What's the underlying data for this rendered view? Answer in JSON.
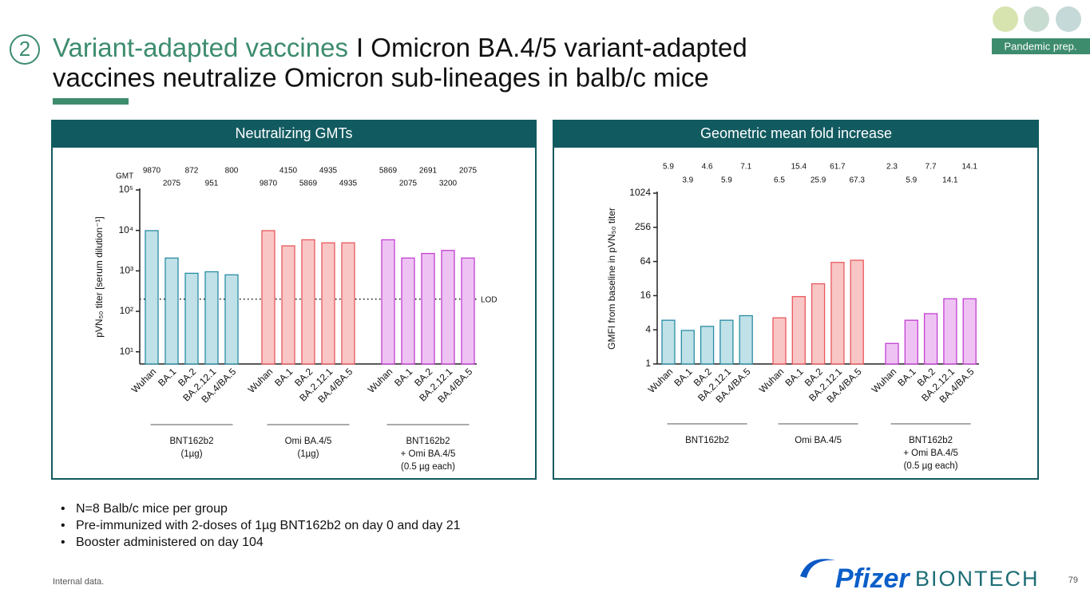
{
  "slide": {
    "number": "2",
    "title_accent": "Variant-adapted vaccines",
    "title_rest": "I Omicron BA.4/5 variant-adapted",
    "title_line2": "vaccines neutralize Omicron sub-lineages in balb/c mice",
    "badge": "Pandemic prep.",
    "bullets": [
      "N=8 Balb/c mice per group",
      "Pre-immunized with 2-doses of 1µg BNT162b2 on day 0 and day 21",
      "Booster administered on day 104"
    ],
    "footnote": "Internal data.",
    "page": "79",
    "logo_left": "Pfizer",
    "logo_right": "BIONTECH"
  },
  "chart_data": [
    {
      "type": "bar",
      "title": "Neutralizing GMTs",
      "value_heading": "GMT",
      "y_label": "pVN₅₀ titer [serum dilution⁻¹]",
      "log_scale": true,
      "ylim": [
        5,
        100000
      ],
      "yticks": [
        {
          "value": 10,
          "label": "10¹"
        },
        {
          "value": 100,
          "label": "10²"
        },
        {
          "value": 1000,
          "label": "10³"
        },
        {
          "value": 10000,
          "label": "10⁴"
        },
        {
          "value": 100000,
          "label": "10⁵"
        }
      ],
      "lod_value": 200,
      "lod_label": "LOD",
      "categories": [
        "Wuhan",
        "BA.1",
        "BA.2",
        "BA.2.12.1",
        "BA.4/BA.5"
      ],
      "series": [
        {
          "name": [
            "BNT162b2",
            "(1µg)"
          ],
          "color": "#2a8ca6",
          "fill": "#bfe1e7",
          "values": [
            9870,
            2075,
            872,
            951,
            800
          ]
        },
        {
          "name": [
            "Omi BA.4/5",
            "(1µg)"
          ],
          "color": "#e8585c",
          "fill": "#f9c6c6",
          "values": [
            9870,
            4150,
            5869,
            4935,
            4935
          ]
        },
        {
          "name": [
            "BNT162b2",
            "+ Omi BA.4/5",
            "(0.5 µg each)"
          ],
          "color": "#c23fd2",
          "fill": "#eec3f3",
          "values": [
            5869,
            2075,
            2691,
            3200,
            2075
          ]
        }
      ]
    },
    {
      "type": "bar",
      "title": "Geometric mean fold increase",
      "y_label": "GMFI from baseline in pVN₅₀ titer",
      "log_scale": true,
      "ylim": [
        1,
        1024
      ],
      "yticks": [
        1,
        4,
        16,
        64,
        256,
        1024
      ],
      "categories": [
        "Wuhan",
        "BA.1",
        "BA.2",
        "BA.2.12.1",
        "BA.4/BA.5"
      ],
      "series": [
        {
          "name": [
            "BNT162b2"
          ],
          "color": "#2a8ca6",
          "fill": "#bfe1e7",
          "values": [
            5.9,
            3.9,
            4.6,
            5.9,
            7.1
          ]
        },
        {
          "name": [
            "Omi BA.4/5"
          ],
          "color": "#e8585c",
          "fill": "#f9c6c6",
          "values": [
            6.5,
            15.4,
            25.9,
            61.7,
            67.3
          ]
        },
        {
          "name": [
            "BNT162b2",
            "+ Omi BA.4/5",
            "(0.5 µg each)"
          ],
          "color": "#c23fd2",
          "fill": "#eec3f3",
          "values": [
            2.3,
            5.9,
            7.7,
            14.1,
            14.1
          ]
        }
      ]
    }
  ]
}
